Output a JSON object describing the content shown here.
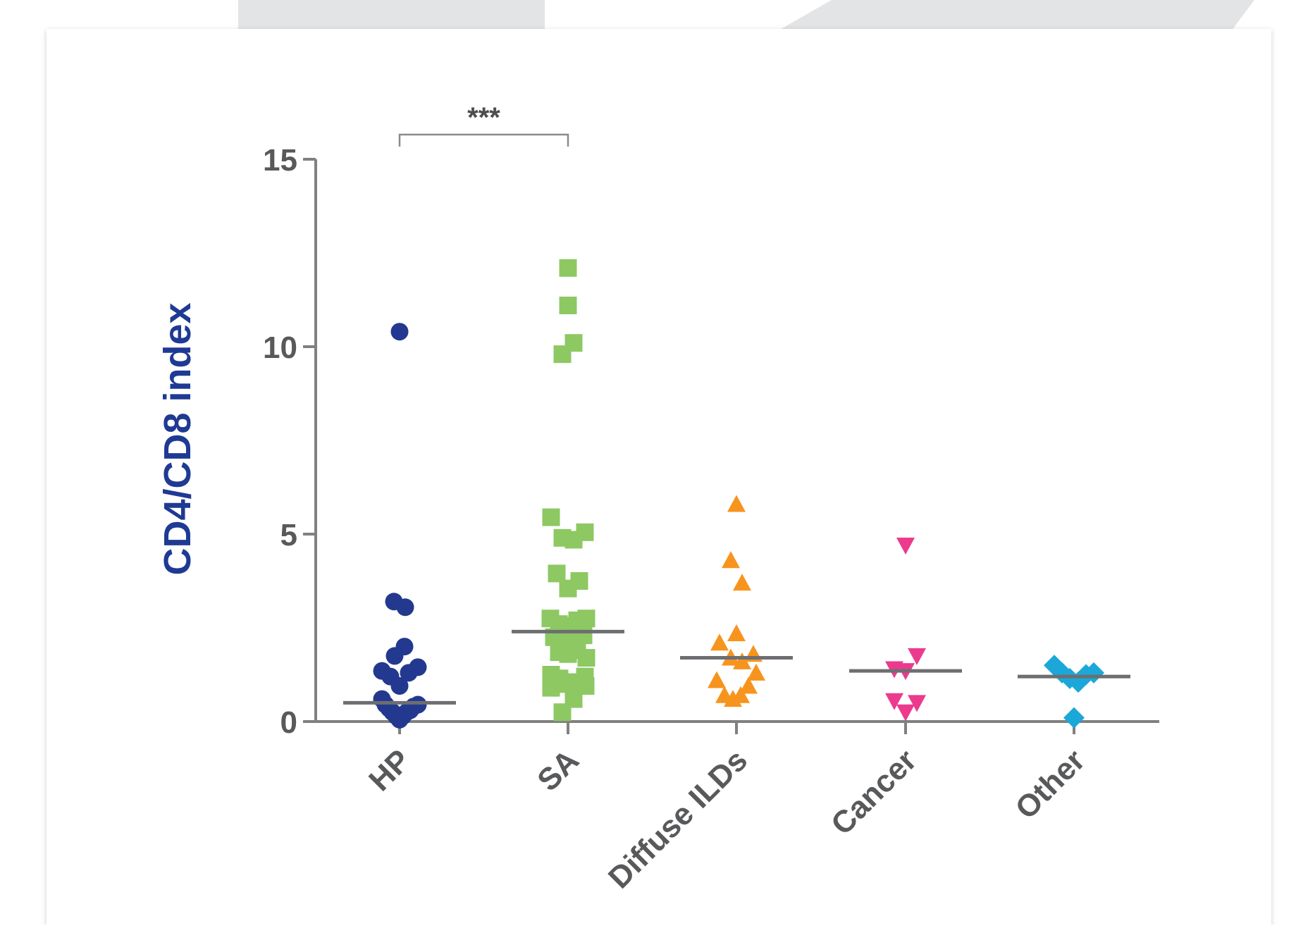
{
  "chart_data": {
    "type": "scatter",
    "title": "",
    "xlabel": "",
    "ylabel": "CD4/CD8 index",
    "ylim": [
      0,
      15
    ],
    "yticks": [
      0,
      5,
      10,
      15
    ],
    "ytick_labels": [
      "0",
      "5",
      "10",
      "15"
    ],
    "categories": [
      "HP",
      "SA",
      "Diffuse ILDs",
      "Cancer",
      "Other"
    ],
    "grid": false,
    "legend": "none",
    "annotation": {
      "text": "***",
      "between": [
        "HP",
        "SA"
      ]
    },
    "colors": {
      "ylabel": "#1f3a93",
      "axis": "#808080",
      "tick_label": "#58595b",
      "median_line": "#6d6e71"
    },
    "series": [
      {
        "category": "HP",
        "marker": "circle",
        "color": "#22398f",
        "median": 0.5,
        "points": [
          [
            0,
            10.4
          ],
          [
            -0.08,
            3.2
          ],
          [
            0.08,
            3.05
          ],
          [
            0.07,
            2.0
          ],
          [
            -0.07,
            1.75
          ],
          [
            -0.25,
            1.35
          ],
          [
            0.13,
            1.3
          ],
          [
            0.26,
            1.45
          ],
          [
            -0.13,
            1.2
          ],
          [
            0,
            0.95
          ],
          [
            -0.25,
            0.6
          ],
          [
            -0.2,
            0.45
          ],
          [
            -0.15,
            0.35
          ],
          [
            -0.1,
            0.25
          ],
          [
            -0.05,
            0.15
          ],
          [
            0,
            0.05
          ],
          [
            0.05,
            0.15
          ],
          [
            0.1,
            0.25
          ],
          [
            0.15,
            0.3
          ],
          [
            0.2,
            0.4
          ],
          [
            0.26,
            0.45
          ]
        ]
      },
      {
        "category": "SA",
        "marker": "square",
        "color": "#8dc863",
        "median": 2.4,
        "points": [
          [
            0,
            12.1
          ],
          [
            0,
            11.1
          ],
          [
            0.08,
            10.1
          ],
          [
            -0.08,
            9.8
          ],
          [
            -0.24,
            5.45
          ],
          [
            -0.08,
            4.9
          ],
          [
            0.08,
            4.85
          ],
          [
            0.24,
            5.05
          ],
          [
            -0.16,
            3.95
          ],
          [
            0,
            3.55
          ],
          [
            0.16,
            3.75
          ],
          [
            -0.25,
            2.75
          ],
          [
            -0.13,
            2.6
          ],
          [
            0,
            2.55
          ],
          [
            0.13,
            2.7
          ],
          [
            0.26,
            2.75
          ],
          [
            -0.2,
            2.25
          ],
          [
            -0.05,
            2.2
          ],
          [
            0.08,
            2.3
          ],
          [
            0.22,
            2.3
          ],
          [
            -0.13,
            1.85
          ],
          [
            0,
            1.8
          ],
          [
            0.13,
            1.9
          ],
          [
            0.26,
            1.7
          ],
          [
            -0.24,
            1.25
          ],
          [
            -0.12,
            1.15
          ],
          [
            0,
            1.05
          ],
          [
            0.12,
            1.05
          ],
          [
            0.24,
            1.2
          ],
          [
            -0.24,
            0.9
          ],
          [
            -0.08,
            1.0
          ],
          [
            0.08,
            0.95
          ],
          [
            0.25,
            0.95
          ],
          [
            0.08,
            0.6
          ],
          [
            -0.08,
            0.25
          ]
        ]
      },
      {
        "category": "Diffuse ILDs",
        "marker": "triangle-up",
        "color": "#f7941d",
        "median": 1.7,
        "points": [
          [
            0,
            5.8
          ],
          [
            -0.08,
            4.3
          ],
          [
            0.08,
            3.7
          ],
          [
            0,
            2.35
          ],
          [
            -0.24,
            2.1
          ],
          [
            0.24,
            1.8
          ],
          [
            -0.08,
            1.7
          ],
          [
            0.08,
            1.6
          ],
          [
            0.28,
            1.3
          ],
          [
            -0.28,
            1.1
          ],
          [
            0.17,
            0.95
          ],
          [
            -0.17,
            0.7
          ],
          [
            0.06,
            0.7
          ],
          [
            -0.05,
            0.6
          ]
        ]
      },
      {
        "category": "Cancer",
        "marker": "triangle-down",
        "color": "#ec3a8d",
        "median": 1.35,
        "points": [
          [
            0,
            4.7
          ],
          [
            0.16,
            1.75
          ],
          [
            -0.16,
            1.4
          ],
          [
            0,
            1.35
          ],
          [
            0.16,
            0.5
          ],
          [
            -0.16,
            0.55
          ],
          [
            0,
            0.25
          ]
        ]
      },
      {
        "category": "Other",
        "marker": "diamond",
        "color": "#1ba8d8",
        "median": 1.2,
        "points": [
          [
            -0.28,
            1.5
          ],
          [
            -0.17,
            1.3
          ],
          [
            -0.06,
            1.15
          ],
          [
            0.06,
            1.05
          ],
          [
            0.17,
            1.25
          ],
          [
            0.28,
            1.3
          ],
          [
            0,
            0.1
          ]
        ]
      }
    ]
  }
}
